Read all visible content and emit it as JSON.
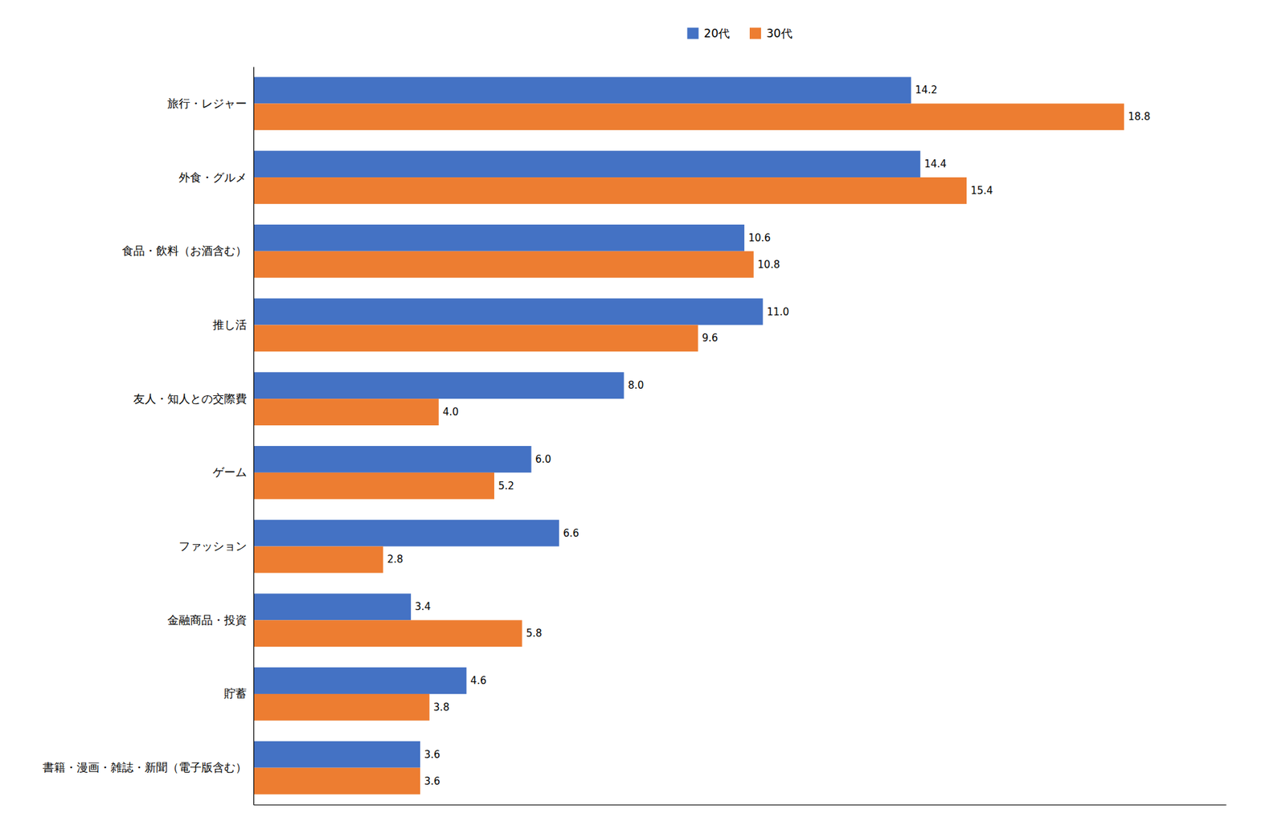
{
  "chart_data": {
    "type": "bar",
    "orientation": "horizontal",
    "categories": [
      "旅行・レジャー",
      "外食・グルメ",
      "食品・飲料（お酒含む）",
      "推し活",
      "友人・知人との交際費",
      "ゲーム",
      "ファッション",
      "金融商品・投資",
      "貯蓄",
      "書籍・漫画・雑誌・新聞（電子版含む）"
    ],
    "series": [
      {
        "name": "20代",
        "color": "#4472C4",
        "values": [
          14.2,
          14.4,
          10.6,
          11.0,
          8.0,
          6.0,
          6.6,
          3.4,
          4.6,
          3.6
        ],
        "value_labels": [
          "14.2",
          "14.4",
          "10.6",
          "11.0",
          "8.0",
          "6.0",
          "6.6",
          "3.4",
          "4.6",
          "3.6"
        ]
      },
      {
        "name": "30代",
        "color": "#ED7D31",
        "values": [
          18.8,
          15.4,
          10.8,
          9.6,
          4.0,
          5.2,
          2.8,
          5.8,
          3.8,
          3.6
        ],
        "value_labels": [
          "18.8",
          "15.4",
          "10.8",
          "9.6",
          "4.0",
          "5.2",
          "2.8",
          "5.8",
          "3.8",
          "3.6"
        ]
      }
    ],
    "xlim": [
      0,
      21
    ],
    "xticks": [],
    "grid": false,
    "legend": "top",
    "data_labels": true,
    "tick_labels": "y"
  }
}
